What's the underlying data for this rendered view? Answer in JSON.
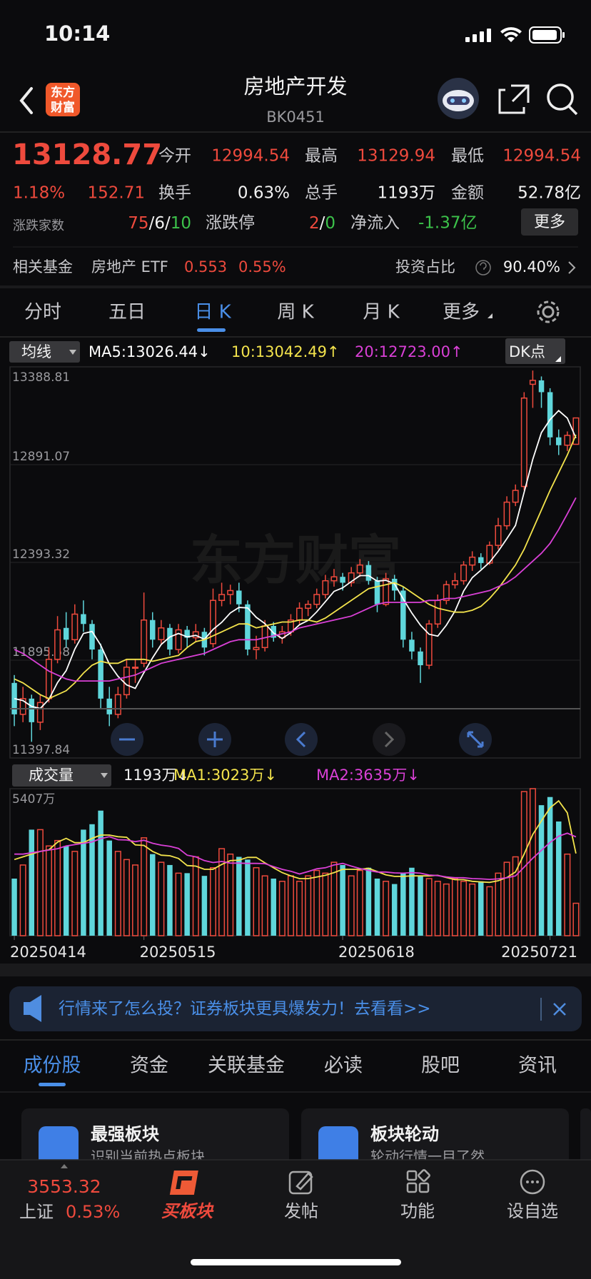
{
  "status": {
    "time": "10:14"
  },
  "header": {
    "logo": [
      "东方",
      "财富"
    ],
    "title": "房地产开发",
    "code": "BK0451"
  },
  "quote": {
    "price": "13128.77",
    "pct": "1.18%",
    "change": "152.71",
    "fields": [
      {
        "label": "今开",
        "value": "12994.54"
      },
      {
        "label": "最高",
        "value": "13129.94"
      },
      {
        "label": "最低",
        "value": "12994.54"
      },
      {
        "label": "换手",
        "value": "0.63%"
      },
      {
        "label": "总手",
        "value": "1193万"
      },
      {
        "label": "金额",
        "value": "52.78亿"
      }
    ],
    "breadth": {
      "label": "涨跌家数",
      "up": "75",
      "flat": "/6/",
      "down": "10"
    },
    "limit": {
      "label": "涨跌停",
      "up": "2",
      "sep": "/",
      "down": "0"
    },
    "inflow": {
      "label": "净流入",
      "value": "-1.37亿"
    },
    "more": "更多"
  },
  "fund": {
    "label": "相关基金",
    "name": "房地产 ETF",
    "price": "0.553",
    "pct": "0.55%",
    "ratio_label": "投资占比",
    "ratio": "90.40%"
  },
  "tabs": [
    "分时",
    "五日",
    "日 K",
    "周 K",
    "月 K",
    "更多"
  ],
  "chart_data": {
    "type": "candlestick",
    "indicator": "均线",
    "dk": "DK点",
    "watermark": "东方财富",
    "categories": [
      "20250414",
      null,
      null,
      null,
      null,
      null,
      null,
      null,
      null,
      null,
      null,
      null,
      null,
      null,
      null,
      "20250515",
      null,
      null,
      null,
      null,
      null,
      null,
      null,
      null,
      null,
      null,
      null,
      null,
      null,
      null,
      null,
      null,
      null,
      null,
      null,
      null,
      null,
      null,
      "20250618",
      null,
      null,
      null,
      null,
      null,
      null,
      null,
      null,
      null,
      null,
      null,
      null,
      null,
      null,
      null,
      null,
      null,
      null,
      null,
      null,
      null,
      null,
      null,
      "20250721",
      null,
      null,
      null
    ],
    "candles": [
      [
        11780,
        11820,
        11560,
        11620
      ],
      [
        11620,
        11760,
        11580,
        11700
      ],
      [
        11700,
        11720,
        11480,
        11580
      ],
      [
        11580,
        11720,
        11540,
        11680
      ],
      [
        11700,
        11960,
        11680,
        11900
      ],
      [
        11900,
        12120,
        11880,
        12050
      ],
      [
        12060,
        12140,
        11960,
        12000
      ],
      [
        12000,
        12180,
        11980,
        12130
      ],
      [
        12130,
        12200,
        12040,
        12080
      ],
      [
        12080,
        12100,
        11900,
        11950
      ],
      [
        11950,
        11980,
        11650,
        11700
      ],
      [
        11700,
        11760,
        11560,
        11620
      ],
      [
        11620,
        11760,
        11600,
        11720
      ],
      [
        11720,
        11900,
        11700,
        11860
      ],
      [
        11860,
        11900,
        11780,
        11860
      ],
      [
        11880,
        12240,
        11860,
        12100
      ],
      [
        12100,
        12140,
        11960,
        12000
      ],
      [
        12000,
        12100,
        11980,
        12060
      ],
      [
        12060,
        12080,
        11920,
        11950
      ],
      [
        11950,
        12080,
        11930,
        12050
      ],
      [
        12050,
        12070,
        11960,
        12010
      ],
      [
        12010,
        12080,
        11990,
        12040
      ],
      [
        12040,
        12060,
        11920,
        11960
      ],
      [
        11980,
        12260,
        11960,
        12200
      ],
      [
        12200,
        12290,
        12170,
        12230
      ],
      [
        12230,
        12280,
        12180,
        12250
      ],
      [
        12250,
        12290,
        12140,
        12180
      ],
      [
        12180,
        12200,
        11920,
        11950
      ],
      [
        11950,
        12020,
        11900,
        11960
      ],
      [
        11960,
        12100,
        11940,
        12070
      ],
      [
        12070,
        12090,
        11990,
        12010
      ],
      [
        12010,
        12070,
        11980,
        12040
      ],
      [
        12040,
        12130,
        12020,
        12100
      ],
      [
        12100,
        12190,
        12080,
        12160
      ],
      [
        12160,
        12200,
        12120,
        12180
      ],
      [
        12180,
        12260,
        12160,
        12230
      ],
      [
        12230,
        12330,
        12210,
        12300
      ],
      [
        12300,
        12360,
        12270,
        12320
      ],
      [
        12320,
        12340,
        12250,
        12290
      ],
      [
        12290,
        12370,
        12270,
        12340
      ],
      [
        12340,
        12410,
        12320,
        12380
      ],
      [
        12380,
        12400,
        12280,
        12300
      ],
      [
        12300,
        12320,
        12140,
        12180
      ],
      [
        12180,
        12340,
        12170,
        12310
      ],
      [
        12310,
        12330,
        12200,
        12250
      ],
      [
        12250,
        12270,
        11960,
        12000
      ],
      [
        12000,
        12040,
        11900,
        11940
      ],
      [
        11940,
        11960,
        11780,
        11870
      ],
      [
        11870,
        12100,
        11850,
        12080
      ],
      [
        12080,
        12230,
        12060,
        12200
      ],
      [
        12200,
        12300,
        12180,
        12280
      ],
      [
        12280,
        12340,
        12260,
        12300
      ],
      [
        12300,
        12400,
        12280,
        12380
      ],
      [
        12380,
        12450,
        12350,
        12420
      ],
      [
        12420,
        12440,
        12360,
        12390
      ],
      [
        12390,
        12500,
        12380,
        12480
      ],
      [
        12480,
        12620,
        12460,
        12580
      ],
      [
        12580,
        12730,
        12560,
        12700
      ],
      [
        12700,
        12790,
        12680,
        12760
      ],
      [
        12780,
        13260,
        12760,
        13230
      ],
      [
        13300,
        13370,
        13180,
        13320
      ],
      [
        13320,
        13340,
        13180,
        13260
      ],
      [
        13260,
        13280,
        12990,
        13030
      ],
      [
        13030,
        13070,
        12940,
        12990
      ],
      [
        12990,
        13060,
        12960,
        13040
      ],
      [
        12994.54,
        13129.94,
        12994.54,
        13128.77
      ]
    ],
    "ma": [
      {
        "label": "MA5:13026.44↓",
        "color": "#ffffff",
        "values": [
          11700,
          11690,
          11660,
          11650,
          11696,
          11782,
          11842,
          11952,
          12032,
          12042,
          11972,
          11876,
          11814,
          11770,
          11752,
          11832,
          11908,
          11976,
          12014,
          12032,
          12014,
          12022,
          12002,
          12052,
          12088,
          12136,
          12164,
          12162,
          12114,
          12082,
          12034,
          12006,
          12036,
          12076,
          12098,
          12142,
          12194,
          12246,
          12264,
          12296,
          12326,
          12326,
          12298,
          12302,
          12284,
          12208,
          12136,
          12074,
          12028,
          12018,
          12074,
          12146,
          12248,
          12316,
          12354,
          12394,
          12450,
          12514,
          12582,
          12750,
          12918,
          13054,
          13120,
          13166,
          13128,
          13026.44
        ]
      },
      {
        "label": "10:13042.49↑",
        "color": "#f3e34c",
        "values": [
          11800,
          11780,
          11750,
          11720,
          11700,
          11720,
          11740,
          11780,
          11830,
          11870,
          11890,
          11880,
          11880,
          11900,
          11900,
          11900,
          11890,
          11900,
          11910,
          11920,
          11960,
          11990,
          12000,
          12020,
          12040,
          12060,
          12080,
          12080,
          12060,
          12070,
          12080,
          12090,
          12090,
          12100,
          12100,
          12090,
          12110,
          12140,
          12170,
          12200,
          12230,
          12260,
          12270,
          12280,
          12290,
          12270,
          12240,
          12210,
          12180,
          12160,
          12150,
          12140,
          12140,
          12150,
          12170,
          12210,
          12260,
          12320,
          12380,
          12460,
          12560,
          12660,
          12760,
          12850,
          12940,
          13042.49
        ]
      },
      {
        "label": "20:12723.00↑",
        "color": "#d940d6",
        "values": [
          11950,
          11930,
          11900,
          11870,
          11840,
          11820,
          11800,
          11790,
          11790,
          11790,
          11790,
          11790,
          11800,
          11810,
          11820,
          11840,
          11860,
          11880,
          11890,
          11900,
          11910,
          11920,
          11930,
          11950,
          11970,
          11990,
          12000,
          12000,
          12000,
          12010,
          12020,
          12030,
          12040,
          12060,
          12070,
          12080,
          12090,
          12100,
          12110,
          12120,
          12140,
          12160,
          12180,
          12190,
          12190,
          12190,
          12190,
          12190,
          12200,
          12200,
          12210,
          12210,
          12220,
          12230,
          12240,
          12250,
          12270,
          12290,
          12320,
          12360,
          12400,
          12440,
          12490,
          12560,
          12640,
          12723
        ]
      }
    ],
    "ylim": [
      11397.84,
      13388.81
    ],
    "yticks": [
      11397.84,
      11895.58,
      12393.32,
      12891.07,
      13388.81
    ],
    "grid": true,
    "up_color": "#ee4a3d",
    "down_color": "#5fd6db",
    "volume": {
      "label": "成交量",
      "current": "1193万↓",
      "values": [
        2100,
        2600,
        3900,
        3900,
        3300,
        3500,
        3300,
        3100,
        3900,
        4100,
        4600,
        3500,
        3100,
        2800,
        2600,
        3600,
        3000,
        2700,
        2600,
        2300,
        2300,
        2900,
        2200,
        2500,
        3200,
        3000,
        2900,
        2800,
        2500,
        2200,
        2100,
        2000,
        2200,
        2000,
        2200,
        2400,
        2300,
        2700,
        2600,
        2200,
        2400,
        2500,
        2100,
        2000,
        1900,
        2300,
        2500,
        2200,
        2100,
        2000,
        1900,
        2100,
        2000,
        1900,
        2000,
        1800,
        2300,
        2700,
        2900,
        5300,
        5407,
        4800,
        5100,
        4200,
        3000,
        1193
      ],
      "ma": [
        {
          "label": "MA1:3023万↓",
          "color": "#f3e34c",
          "values": [
            2800,
            2900,
            3000,
            3100,
            3160,
            3440,
            3580,
            3420,
            3420,
            3580,
            3700,
            3700,
            3640,
            3620,
            3340,
            3320,
            3100,
            2960,
            2940,
            2840,
            2580,
            2560,
            2440,
            2440,
            2620,
            2760,
            2780,
            2880,
            2880,
            2680,
            2500,
            2320,
            2200,
            2100,
            2100,
            2160,
            2220,
            2320,
            2440,
            2440,
            2440,
            2480,
            2360,
            2240,
            2180,
            2180,
            2200,
            2200,
            2200,
            2220,
            2140,
            2060,
            2060,
            2000,
            1980,
            1960,
            2020,
            2140,
            2340,
            3000,
            3722,
            4221,
            4701,
            4961,
            4521,
            3023
          ]
        },
        {
          "label": "MA2:3635万↓",
          "color": "#d940d6",
          "values": [
            3000,
            3000,
            3050,
            3100,
            3150,
            3200,
            3300,
            3350,
            3400,
            3450,
            3570,
            3640,
            3530,
            3520,
            3460,
            3510,
            3400,
            3330,
            3290,
            3210,
            2960,
            2900,
            2760,
            2690,
            2730,
            2670,
            2670,
            2660,
            2660,
            2650,
            2540,
            2440,
            2370,
            2270,
            2360,
            2460,
            2500,
            2600,
            2660,
            2560,
            2470,
            2400,
            2340,
            2340,
            2310,
            2300,
            2320,
            2300,
            2230,
            2210,
            2160,
            2130,
            2130,
            2100,
            2090,
            2070,
            2090,
            2130,
            2200,
            2520,
            2850,
            3140,
            3430,
            3660,
            3770,
            3635
          ]
        }
      ],
      "ylim": [
        0,
        5407
      ],
      "yticks": [
        {
          "value": 5407,
          "label": "5407万"
        }
      ]
    }
  },
  "banner": "行情来了怎么投？证券板块更具爆发力！去看看>>",
  "section_tabs": [
    "成份股",
    "资金",
    "关联基金",
    "必读",
    "股吧",
    "资讯"
  ],
  "cards": [
    {
      "title": "最强板块",
      "subtitle": "识别当前热点板块"
    },
    {
      "title": "板块轮动",
      "subtitle": "轮动行情一目了然"
    }
  ],
  "nav": {
    "index_value": "3553.32",
    "index_name": "上证",
    "index_pct": "0.53%",
    "items": [
      "买板块",
      "发帖",
      "功能",
      "设自选"
    ]
  }
}
